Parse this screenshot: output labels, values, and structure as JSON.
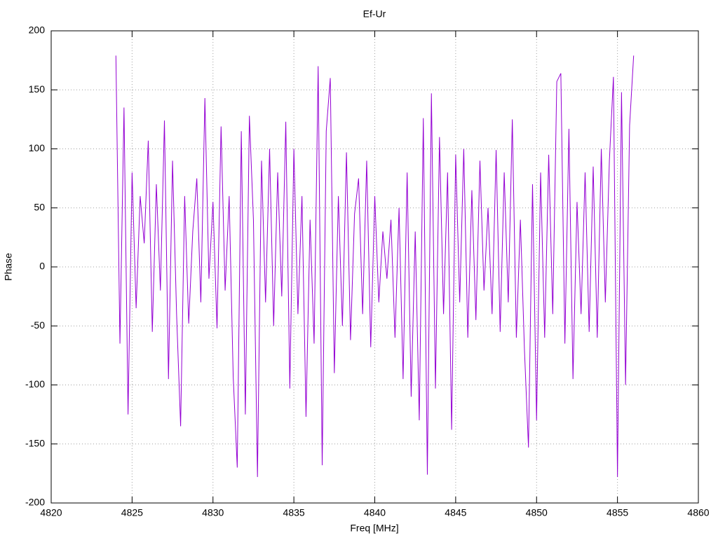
{
  "chart_data": {
    "type": "line",
    "title": "Ef-Ur",
    "xlabel": "Freq [MHz]",
    "ylabel": "Phase",
    "xlim": [
      4820,
      4860
    ],
    "xticks": [
      4820,
      4825,
      4830,
      4835,
      4840,
      4845,
      4850,
      4855,
      4860
    ],
    "ylim": [
      -200,
      200
    ],
    "yticks": [
      -200,
      -150,
      -100,
      -50,
      0,
      50,
      100,
      150,
      200
    ],
    "grid": true,
    "series": [
      {
        "color": "#9400d3",
        "x": [
          4824,
          4824.25,
          4824.5,
          4824.75,
          4825,
          4825.25,
          4825.5,
          4825.75,
          4826,
          4826.25,
          4826.5,
          4826.75,
          4827,
          4827.25,
          4827.5,
          4827.75,
          4828,
          4828.25,
          4828.5,
          4828.75,
          4829,
          4829.25,
          4829.5,
          4829.75,
          4830,
          4830.25,
          4830.5,
          4830.75,
          4831,
          4831.25,
          4831.5,
          4831.75,
          4832,
          4832.25,
          4832.5,
          4832.75,
          4833,
          4833.25,
          4833.5,
          4833.75,
          4834,
          4834.25,
          4834.5,
          4834.75,
          4835,
          4835.25,
          4835.5,
          4835.75,
          4836,
          4836.25,
          4836.5,
          4836.75,
          4837,
          4837.25,
          4837.5,
          4837.75,
          4838,
          4838.25,
          4838.5,
          4838.75,
          4839,
          4839.25,
          4839.5,
          4839.75,
          4840,
          4840.25,
          4840.5,
          4840.75,
          4841,
          4841.25,
          4841.5,
          4841.75,
          4842,
          4842.25,
          4842.5,
          4842.75,
          4843,
          4843.25,
          4843.5,
          4843.75,
          4844,
          4844.25,
          4844.5,
          4844.75,
          4845,
          4845.25,
          4845.5,
          4845.75,
          4846,
          4846.25,
          4846.5,
          4846.75,
          4847,
          4847.25,
          4847.5,
          4847.75,
          4848,
          4848.25,
          4848.5,
          4848.75,
          4849,
          4849.25,
          4849.5,
          4849.75,
          4850,
          4850.25,
          4850.5,
          4850.75,
          4851,
          4851.25,
          4851.5,
          4851.75,
          4852,
          4852.25,
          4852.5,
          4852.75,
          4853,
          4853.25,
          4853.5,
          4853.75,
          4854,
          4854.25,
          4854.5,
          4854.75,
          4855,
          4855.25,
          4855.5,
          4855.75,
          4856
        ],
        "values": [
          179,
          -65,
          135,
          -125,
          80,
          -35,
          60,
          20,
          107,
          -55,
          70,
          -20,
          124,
          -95,
          90,
          -40,
          -135,
          60,
          -48,
          30,
          75,
          -30,
          143,
          -10,
          55,
          -52,
          119,
          -20,
          60,
          -93,
          -170,
          115,
          -125,
          128,
          40,
          -178,
          90,
          -30,
          100,
          -50,
          80,
          -25,
          123,
          -103,
          100,
          -40,
          60,
          -127,
          40,
          -65,
          170,
          -168,
          115,
          160,
          -90,
          60,
          -50,
          97,
          -62,
          45,
          75,
          -40,
          90,
          -68,
          60,
          -30,
          30,
          -10,
          40,
          -60,
          50,
          -95,
          80,
          -110,
          30,
          -130,
          126,
          -176,
          147,
          -103,
          110,
          -40,
          80,
          -138,
          95,
          -30,
          100,
          -60,
          65,
          -45,
          90,
          -20,
          50,
          -40,
          99,
          -55,
          80,
          -30,
          125,
          -60,
          40,
          -70,
          -153,
          70,
          -130,
          80,
          -60,
          95,
          -40,
          157,
          164,
          -65,
          117,
          -95,
          55,
          -40,
          80,
          -55,
          85,
          -60,
          100,
          -30,
          90,
          161,
          -178,
          148,
          -100,
          120,
          179
        ]
      }
    ]
  }
}
